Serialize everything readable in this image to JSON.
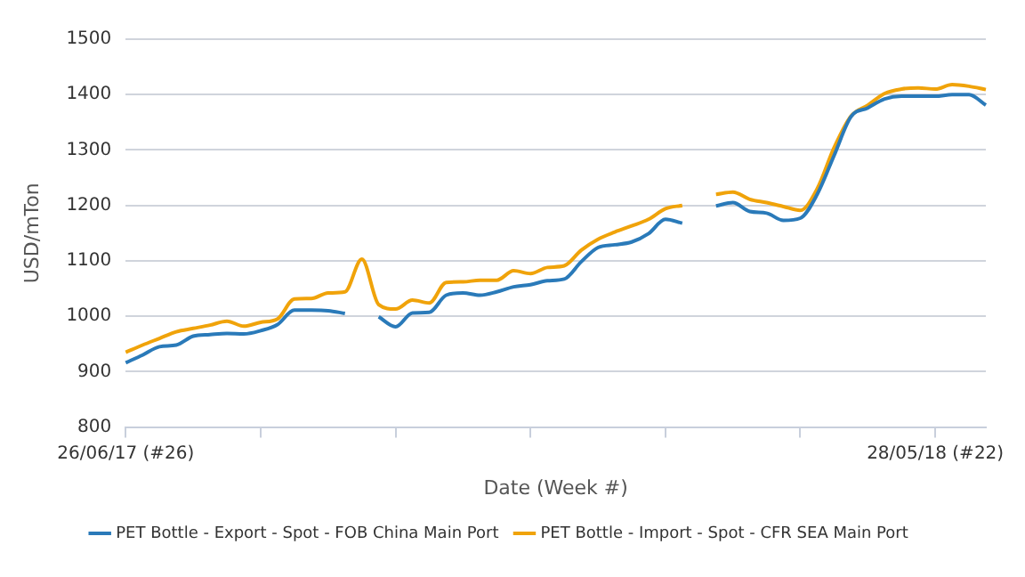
{
  "chart_data": {
    "type": "line",
    "xlabel": "Date (Week #)",
    "ylabel": "USD/mTon",
    "categories": [
      "26/06/17 (#26)",
      null,
      null,
      null,
      null,
      null,
      null,
      null,
      null,
      null,
      null,
      null,
      null,
      null,
      null,
      null,
      null,
      null,
      null,
      null,
      null,
      null,
      null,
      null,
      null,
      null,
      null,
      null,
      null,
      null,
      null,
      null,
      null,
      null,
      null,
      null,
      null,
      null,
      null,
      null,
      null,
      null,
      null,
      null,
      null,
      null,
      null,
      null,
      "28/05/18 (#22)",
      null,
      null,
      null
    ],
    "series": [
      {
        "name": "PET Bottle - Export - Spot - FOB China Main Port",
        "color": "#2a7ab9",
        "values": [
          916,
          930,
          945,
          948,
          964,
          967,
          969,
          968,
          974,
          985,
          1011,
          1011,
          1010,
          1005,
          null,
          999,
          981,
          1006,
          1007,
          1038,
          1042,
          1038,
          1044,
          1053,
          1057,
          1064,
          1067,
          1098,
          1124,
          1129,
          1134,
          1149,
          1175,
          1168,
          null,
          1199,
          1205,
          1189,
          1186,
          1173,
          1177,
          1220,
          1290,
          1360,
          1376,
          1392,
          1397,
          1397,
          1397,
          1400,
          1400,
          1381
        ]
      },
      {
        "name": "PET Bottle - Import - Spot - CFR SEA Main Port",
        "color": "#f0a30a",
        "values": [
          935,
          948,
          960,
          972,
          978,
          984,
          991,
          982,
          989,
          995,
          1031,
          1032,
          1042,
          1044,
          1103,
          1021,
          1013,
          1029,
          1024,
          1061,
          1062,
          1065,
          1065,
          1082,
          1077,
          1088,
          1091,
          1119,
          1139,
          1152,
          1163,
          1175,
          1194,
          1200,
          null,
          1220,
          1224,
          1211,
          1205,
          1198,
          1191,
          1230,
          1304,
          1361,
          1381,
          1402,
          1410,
          1412,
          1410,
          1418,
          1415,
          1409
        ]
      }
    ],
    "ylim": [
      800,
      1500
    ],
    "yticks": [
      800,
      900,
      1000,
      1100,
      1200,
      1300,
      1400,
      1500
    ],
    "grid": "y",
    "legend": "bottom",
    "marker": "none",
    "line_style": "solid"
  }
}
